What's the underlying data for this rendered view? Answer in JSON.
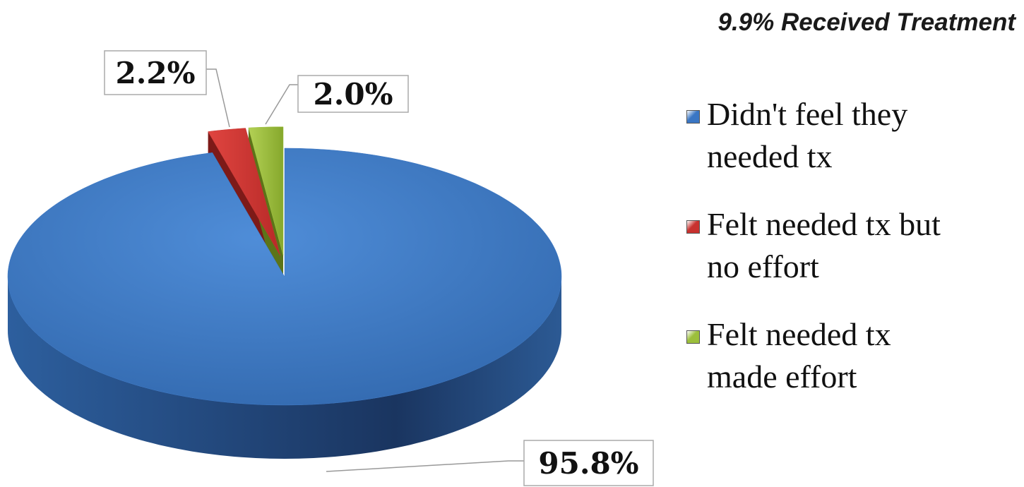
{
  "chart_data": {
    "type": "pie",
    "title": "9.9% Received Treatment",
    "categories": [
      "Didn't feel they needed tx",
      "Felt needed tx but no effort",
      "Felt needed tx made effort"
    ],
    "values": [
      95.8,
      2.2,
      2.0
    ],
    "value_labels": [
      "95.8%",
      "2.2%",
      "2.0%"
    ],
    "colors": [
      "#3a76c4",
      "#c8322f",
      "#9cbf3b"
    ],
    "legend": "right"
  }
}
